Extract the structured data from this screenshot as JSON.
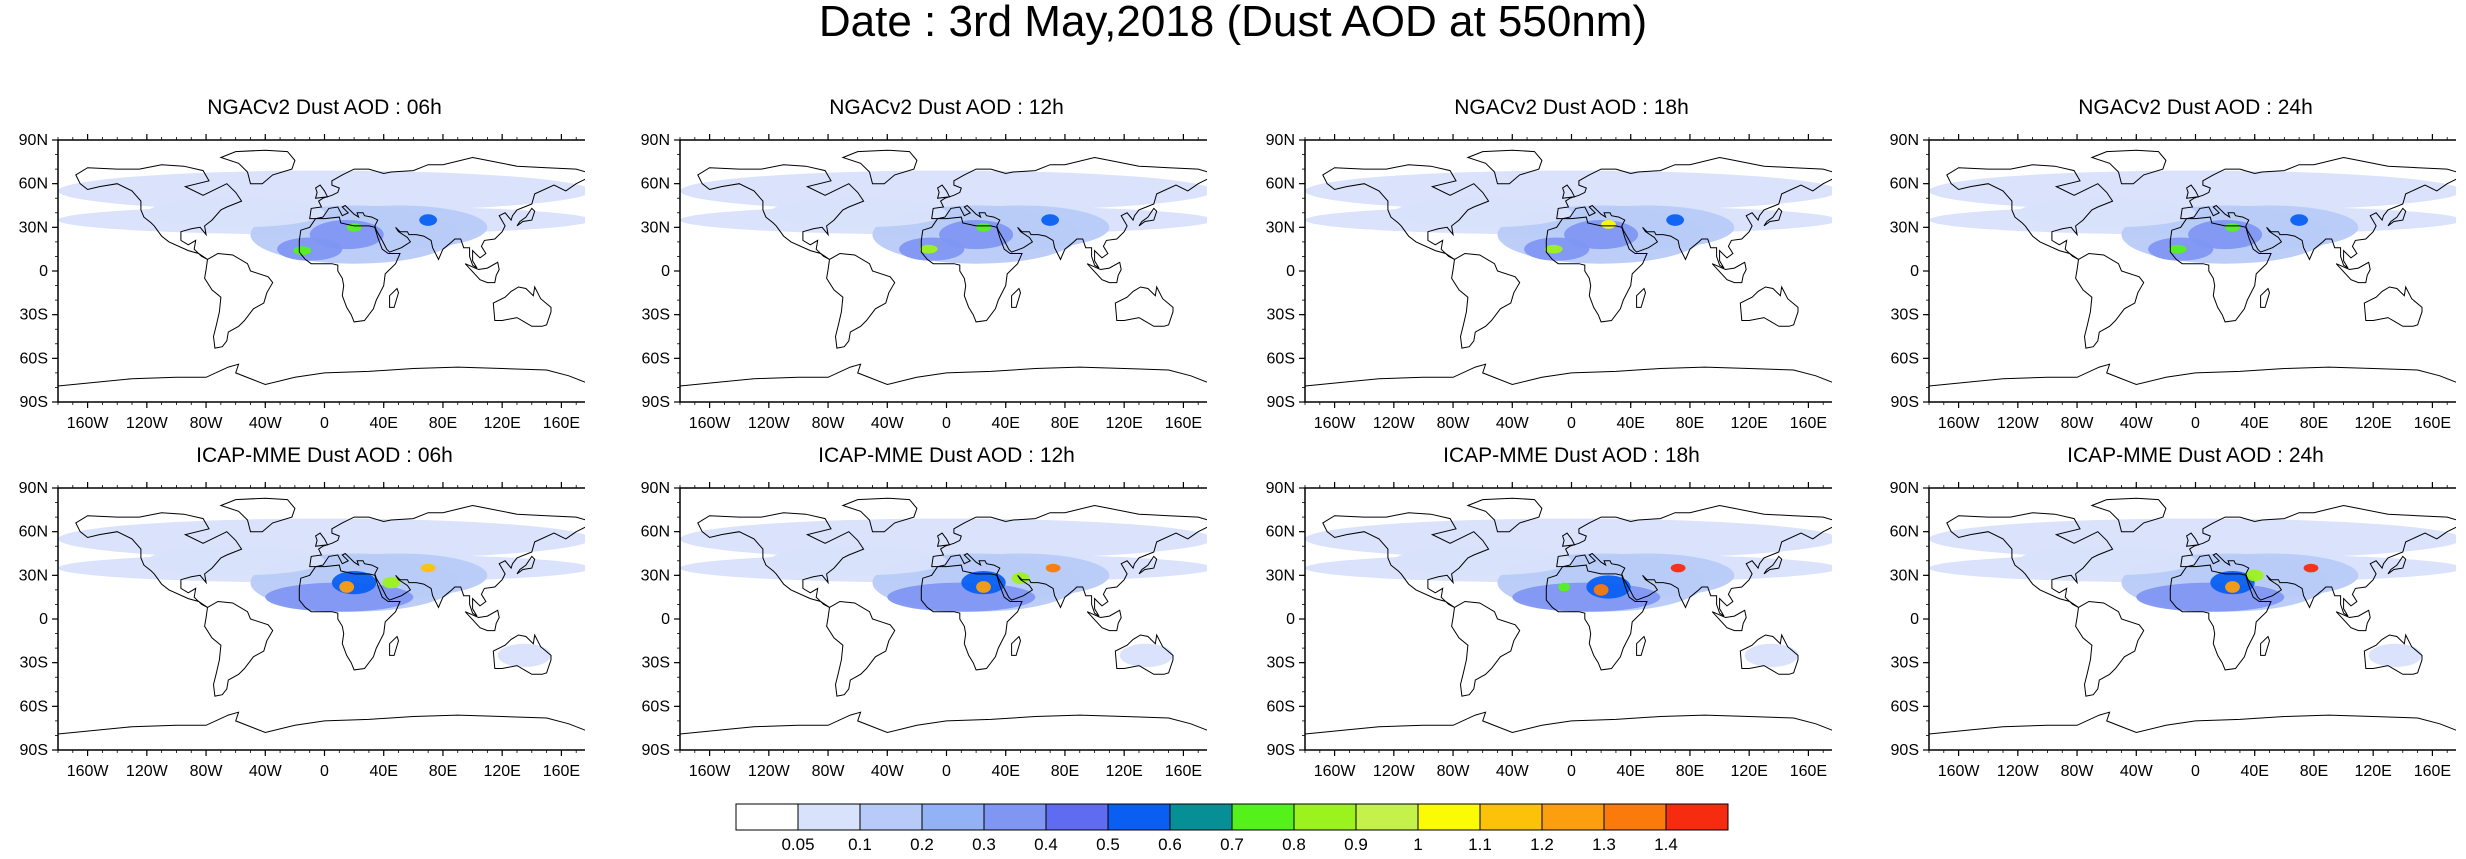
{
  "title": "Date : 3rd May,2018 (Dust AOD at 550nm)",
  "panels": [
    {
      "title": "NGACv2 Dust AOD : 06h"
    },
    {
      "title": "NGACv2 Dust AOD : 12h"
    },
    {
      "title": "NGACv2 Dust AOD : 18h"
    },
    {
      "title": "NGACv2 Dust AOD : 24h"
    },
    {
      "title": "ICAP-MME Dust AOD : 06h"
    },
    {
      "title": "ICAP-MME Dust AOD : 12h"
    },
    {
      "title": "ICAP-MME Dust AOD : 18h"
    },
    {
      "title": "ICAP-MME Dust AOD : 24h"
    }
  ],
  "lat_ticks": [
    "90N",
    "60N",
    "30N",
    "0",
    "30S",
    "60S",
    "90S"
  ],
  "lon_ticks": [
    "160W",
    "120W",
    "80W",
    "40W",
    "0",
    "40E",
    "80E",
    "120E",
    "160E"
  ],
  "colorbar": {
    "labels": [
      "0.05",
      "0.1",
      "0.2",
      "0.3",
      "0.4",
      "0.5",
      "0.6",
      "0.7",
      "0.8",
      "0.9",
      "1",
      "1.1",
      "1.2",
      "1.3",
      "1.4"
    ],
    "colors": [
      "#ffffff",
      "#d8e2fb",
      "#b8cbf8",
      "#93b1f5",
      "#7f96f2",
      "#5f6bf0",
      "#0a5ff2",
      "#069096",
      "#54f21a",
      "#9cf21c",
      "#c4f24a",
      "#fbfb06",
      "#fcc20a",
      "#fc9f0e",
      "#fa7a0c",
      "#f62b0f"
    ]
  }
}
